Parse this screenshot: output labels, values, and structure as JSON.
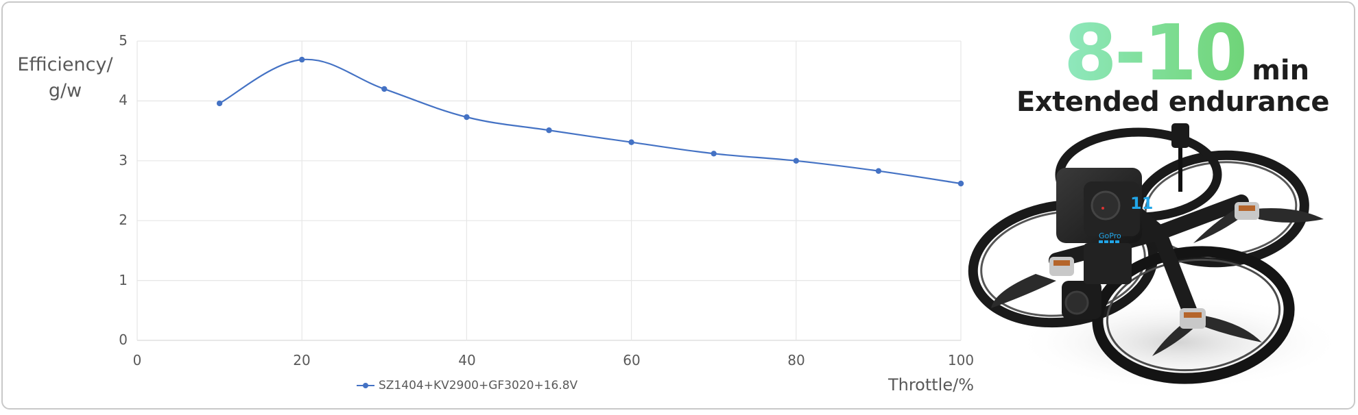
{
  "chart_data": {
    "type": "line",
    "title": "",
    "xlabel": "Throttle/%",
    "ylabel": "Efficiency/ g/w",
    "ylabel_lines": [
      "Efficiency/",
      "g/w"
    ],
    "xlim": [
      0,
      100
    ],
    "ylim": [
      0,
      5
    ],
    "xticks": [
      0,
      20,
      40,
      60,
      80,
      100
    ],
    "yticks": [
      0,
      1,
      2,
      3,
      4,
      5
    ],
    "grid": true,
    "legend_position": "bottom",
    "series": [
      {
        "name": "SZ1404+KV2900+GF3020+16.8V",
        "color": "#4472c4",
        "smooth": true,
        "x": [
          10,
          20,
          30,
          40,
          50,
          60,
          70,
          80,
          90,
          100
        ],
        "values": [
          3.96,
          4.69,
          4.2,
          3.73,
          3.51,
          3.31,
          3.12,
          3.0,
          2.83,
          2.62
        ]
      }
    ]
  },
  "promo": {
    "range": "8-10",
    "unit": "min",
    "subtitle": "Extended endurance",
    "gradient_colors": [
      "#8fe8be",
      "#6fd478"
    ]
  },
  "product_image": {
    "icon": "fpv-drone-icon",
    "description": "Cinewhoop FPV drone with ducted propellers and mounted action camera",
    "camera_brand_text": "GoPro",
    "camera_model_text": "11"
  }
}
